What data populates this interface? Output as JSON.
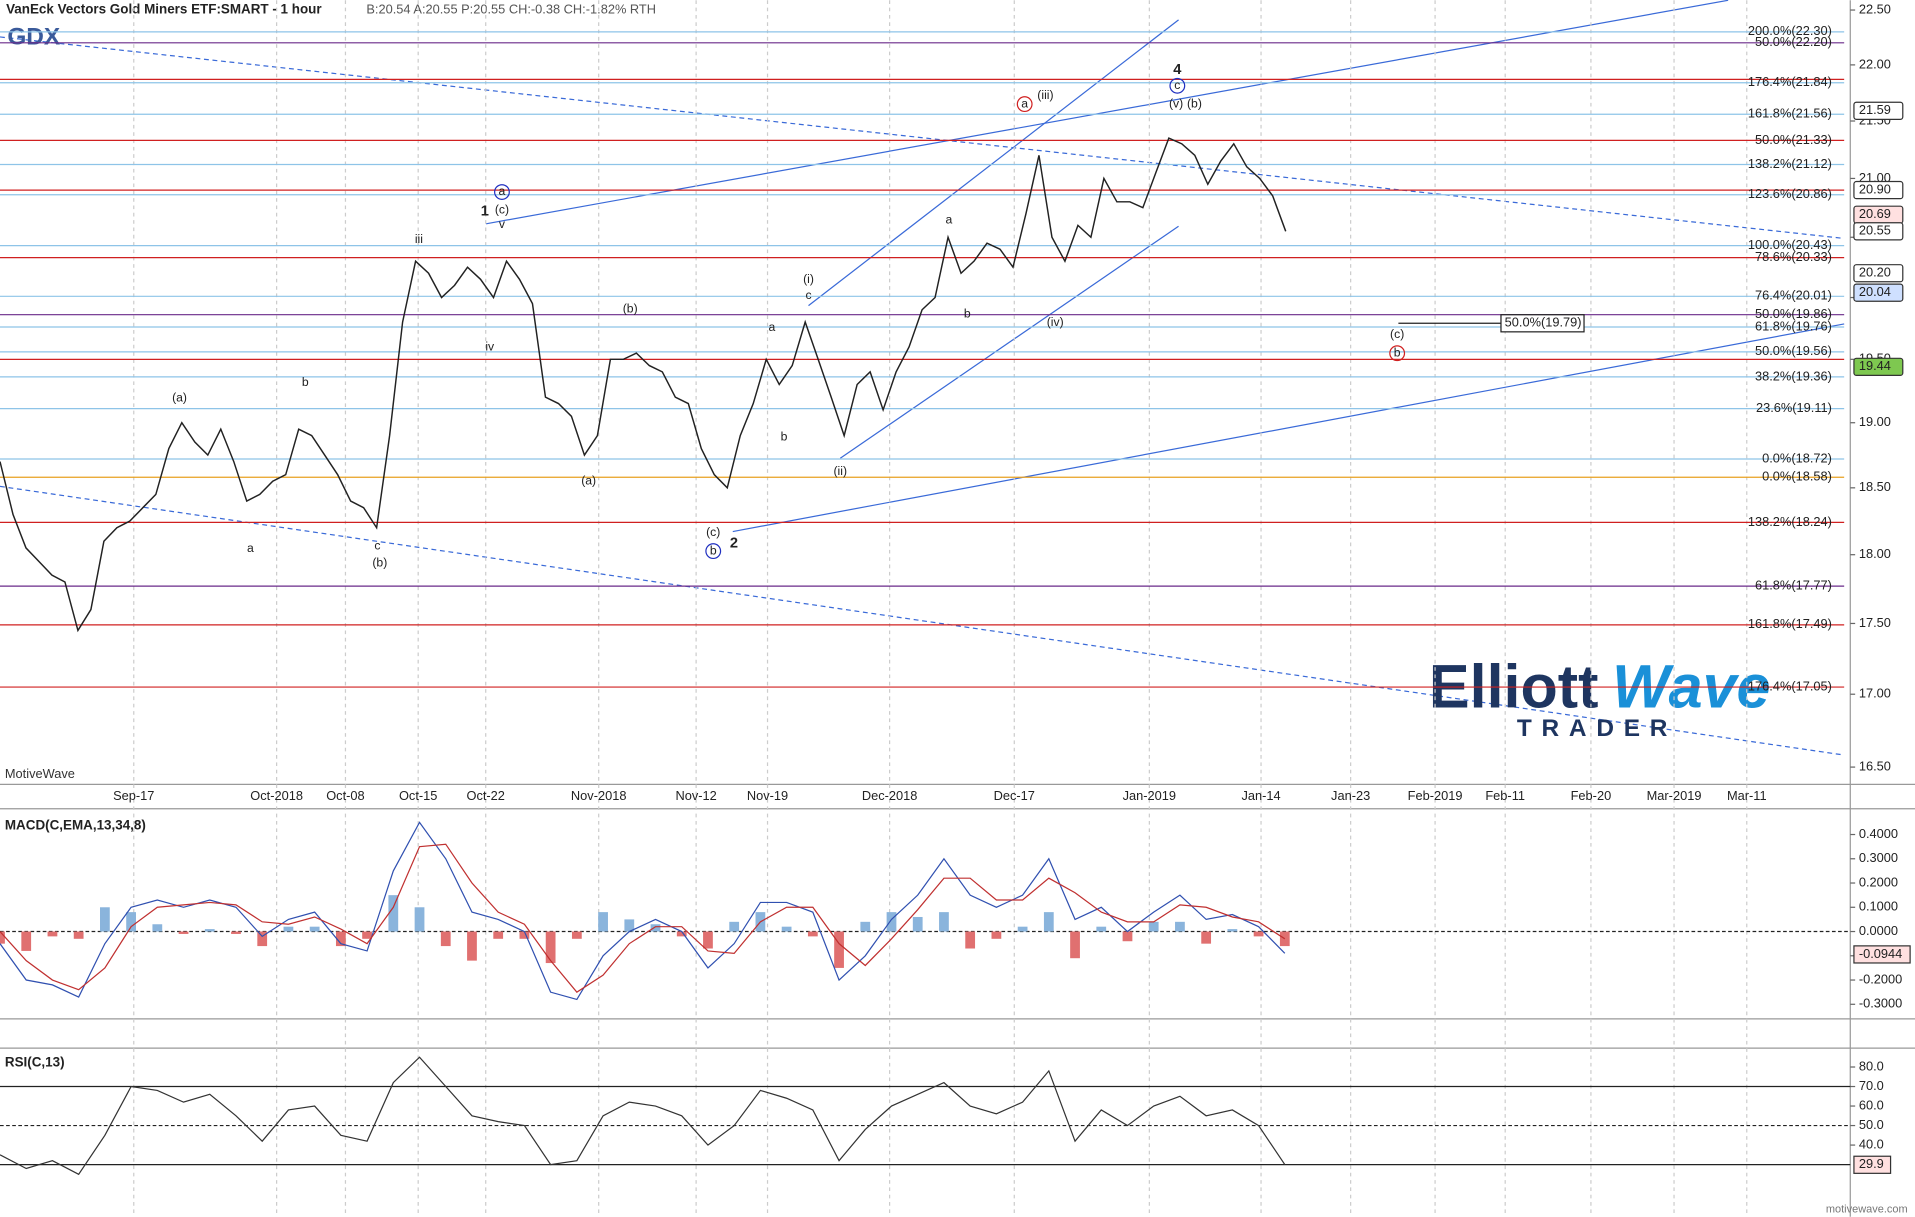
{
  "chart_data": [
    {
      "type": "line",
      "title": "VanEck Vectors Gold Miners ETF:SMART - 1 hour",
      "subtitle": "B:20.54 A:20.55 P:20.55 CH:-0.38 CH:-1.82% RTH",
      "symbol": "GDX",
      "watermark": "MotiveWave",
      "log": true,
      "xlim": [
        0,
        142
      ],
      "xticks": [
        {
          "value": 10.3,
          "label": "Sep-17"
        },
        {
          "value": 21.3,
          "label": "Oct-2018"
        },
        {
          "value": 26.6,
          "label": "Oct-08"
        },
        {
          "value": 32.2,
          "label": "Oct-15"
        },
        {
          "value": 37.4,
          "label": "Oct-22"
        },
        {
          "value": 46.1,
          "label": "Nov-2018"
        },
        {
          "value": 53.6,
          "label": "Nov-12"
        },
        {
          "value": 59.1,
          "label": "Nov-19"
        },
        {
          "value": 68.5,
          "label": "Dec-2018"
        },
        {
          "value": 78.1,
          "label": "Dec-17"
        },
        {
          "value": 88.5,
          "label": "Jan-2019"
        },
        {
          "value": 97.1,
          "label": "Jan-14"
        },
        {
          "value": 104,
          "label": "Jan-23"
        },
        {
          "value": 110.5,
          "label": "Feb-2019"
        },
        {
          "value": 115.9,
          "label": "Feb-11"
        },
        {
          "value": 122.5,
          "label": "Feb-20"
        },
        {
          "value": 128.9,
          "label": "Mar-2019"
        },
        {
          "value": 134.5,
          "label": "Mar-11"
        }
      ],
      "ylim": [
        16.4,
        22.59
      ],
      "yticks": [
        {
          "value": 16.5,
          "label": "16.50"
        },
        {
          "value": 17,
          "label": "17.00"
        },
        {
          "value": 17.5,
          "label": "17.50"
        },
        {
          "value": 18,
          "label": "18.00"
        },
        {
          "value": 18.5,
          "label": "18.50"
        },
        {
          "value": 19,
          "label": "19.00"
        },
        {
          "value": 19.5,
          "label": "19.50"
        },
        {
          "value": 20,
          "label": "20.00"
        },
        {
          "value": 20.5,
          "label": "20.50"
        },
        {
          "value": 21,
          "label": "21.00"
        },
        {
          "value": 21.5,
          "label": "21.50"
        },
        {
          "value": 22,
          "label": "22.00"
        },
        {
          "value": 22.5,
          "label": "22.50"
        }
      ],
      "series": [
        {
          "name": "GDX",
          "color": "#222222",
          "values": [
            18.7,
            18.3,
            18.05,
            17.95,
            17.85,
            17.8,
            17.45,
            17.6,
            18.1,
            18.2,
            18.25,
            18.35,
            18.45,
            18.8,
            19.0,
            18.85,
            18.75,
            18.95,
            18.7,
            18.4,
            18.45,
            18.55,
            18.6,
            18.95,
            18.9,
            18.75,
            18.6,
            18.4,
            18.35,
            18.2,
            18.9,
            19.8,
            20.3,
            20.2,
            20.0,
            20.1,
            20.25,
            20.15,
            20.0,
            20.3,
            20.15,
            19.95,
            19.2,
            19.15,
            19.05,
            18.75,
            18.9,
            19.5,
            19.5,
            19.55,
            19.45,
            19.4,
            19.2,
            19.15,
            18.8,
            18.6,
            18.5,
            18.9,
            19.15,
            19.5,
            19.3,
            19.45,
            19.8,
            19.5,
            19.2,
            18.9,
            19.3,
            19.4,
            19.1,
            19.4,
            19.6,
            19.9,
            20.0,
            20.5,
            20.2,
            20.3,
            20.45,
            20.4,
            20.25,
            20.7,
            21.2,
            20.5,
            20.3,
            20.6,
            20.5,
            21.0,
            20.8,
            20.8,
            20.75,
            21.05,
            21.35,
            21.3,
            21.2,
            20.95,
            21.15,
            21.3,
            21.1,
            21.0,
            20.85,
            20.55
          ]
        }
      ],
      "levels": [
        {
          "value": 22.3,
          "label": "200.0%(22.30)",
          "color": "#8ec4e8"
        },
        {
          "value": 22.2,
          "label": "50.0%(22.20)",
          "color": "#6a2a8a"
        },
        {
          "value": 21.87,
          "color": "#d02020"
        },
        {
          "value": 21.84,
          "label": "176.4%(21.84)",
          "color": "#8ec4e8"
        },
        {
          "value": 21.56,
          "label": "161.8%(21.56)",
          "color": "#8ec4e8"
        },
        {
          "value": 21.33,
          "label": "50.0%(21.33)",
          "color": "#d02020"
        },
        {
          "value": 21.12,
          "label": "138.2%(21.12)",
          "color": "#8ec4e8"
        },
        {
          "value": 20.9,
          "color": "#d02020"
        },
        {
          "value": 20.86,
          "label": "123.6%(20.86)",
          "color": "#8ec4e8"
        },
        {
          "value": 20.43,
          "label": "100.0%(20.43)",
          "color": "#8ec4e8"
        },
        {
          "value": 20.33,
          "label": "78.6%(20.33)",
          "color": "#d02020"
        },
        {
          "value": 20.01,
          "label": "76.4%(20.01)",
          "color": "#8ec4e8"
        },
        {
          "value": 19.86,
          "label": "50.0%(19.86)",
          "color": "#6a2a8a"
        },
        {
          "value": 19.76,
          "label": "61.8%(19.76)",
          "color": "#8ec4e8"
        },
        {
          "value": 19.56,
          "label": "50.0%(19.56)",
          "color": "#8ec4e8"
        },
        {
          "value": 19.5,
          "color": "#d02020"
        },
        {
          "value": 19.36,
          "label": "38.2%(19.36)",
          "color": "#8ec4e8"
        },
        {
          "value": 19.11,
          "label": "23.6%(19.11)",
          "color": "#8ec4e8"
        },
        {
          "value": 18.72,
          "label": "0.0%(18.72)",
          "color": "#8ec4e8"
        },
        {
          "value": 18.58,
          "label": "0.0%(18.58)",
          "color": "#e8a020"
        },
        {
          "value": 18.24,
          "label": "138.2%(18.24)",
          "color": "#d02020"
        },
        {
          "value": 17.77,
          "label": "61.8%(17.77)",
          "color": "#6a2a8a"
        },
        {
          "value": 17.49,
          "label": "161.8%(17.49)",
          "color": "#d02020"
        },
        {
          "value": 17.05,
          "label": "176.4%(17.05)",
          "color": "#d02020"
        }
      ],
      "target": {
        "value": 19.79,
        "label": "50.0%(19.79)"
      },
      "price_markers": [
        {
          "value": 21.59,
          "color": "#ffffff"
        },
        {
          "value": 20.9,
          "label": "20.90",
          "color": "#ffffff"
        },
        {
          "value": 20.69,
          "color": "#ffe0e0"
        },
        {
          "value": 20.55,
          "color": "#ffffff"
        },
        {
          "value": 20.2,
          "label": "20.20",
          "color": "#ffffff"
        },
        {
          "value": 20.04,
          "color": "#cfe0ff"
        },
        {
          "value": 19.44,
          "color": "#7ec850"
        }
      ],
      "annotations": [
        {
          "text": "1",
          "color": "#d02020"
        },
        {
          "text": "2",
          "color": "#d02020"
        },
        {
          "text": "4",
          "color": "#2030c0"
        },
        {
          "text": "(iii)",
          "color": "#2030c0"
        },
        {
          "text": "(v)",
          "color": "#2030c0"
        },
        {
          "text": "(b)",
          "color": "#d02020"
        },
        {
          "text": "a",
          "color": "#d02020",
          "circled": true
        },
        {
          "text": "c",
          "color": "#2030c0",
          "circled": true
        },
        {
          "text": "a",
          "color": "#2030c0",
          "circled": true
        },
        {
          "text": "(c)",
          "color": "#2030c0"
        },
        {
          "text": "iii",
          "color": "#2030c0"
        },
        {
          "text": "v",
          "color": "#2030c0"
        },
        {
          "text": "iv",
          "color": "#2030c0"
        },
        {
          "text": "(b)",
          "color": "#2030c0"
        },
        {
          "text": "(a)",
          "color": "#2030c0"
        },
        {
          "text": "(a)",
          "color": "#2030c0"
        },
        {
          "text": "b",
          "color": "#2030c0"
        },
        {
          "text": "a",
          "color": "#2030c0"
        },
        {
          "text": "c",
          "color": "#2030c0"
        },
        {
          "text": "(b)",
          "color": "#2030c0"
        },
        {
          "text": "(c)",
          "color": "#2030c0"
        },
        {
          "text": "b",
          "color": "#2030c0",
          "circled": true
        },
        {
          "text": "(i)",
          "color": "#2030c0"
        },
        {
          "text": "c",
          "color": "#2030c0"
        },
        {
          "text": "a",
          "color": "#2030c0"
        },
        {
          "text": "b",
          "color": "#2030c0"
        },
        {
          "text": "(ii)",
          "color": "#2030c0"
        },
        {
          "text": "a",
          "color": "#2030c0"
        },
        {
          "text": "b",
          "color": "#2030c0"
        },
        {
          "text": "(iv)",
          "color": "#2030c0"
        },
        {
          "text": "(c)",
          "color": "#d02020"
        },
        {
          "text": "b",
          "color": "#d02020",
          "circled": true
        }
      ]
    },
    {
      "type": "macd",
      "title": "MACD(C,EMA,13,34,8)",
      "ylim": [
        -0.35,
        0.496
      ],
      "yticks": [
        {
          "value": -0.3,
          "label": "-0.3000"
        },
        {
          "value": -0.2,
          "label": "-0.2000"
        },
        {
          "value": -0.1,
          "label": "-0.1000"
        },
        {
          "value": 0,
          "label": "0.0000"
        },
        {
          "value": 0.1,
          "label": "0.1000"
        },
        {
          "value": 0.2,
          "label": "0.2000"
        },
        {
          "value": 0.3,
          "label": "0.3000"
        },
        {
          "value": 0.4,
          "label": "0.4000"
        }
      ],
      "last": {
        "value": -0.0944,
        "color": "#ffe0e0"
      },
      "series": [
        {
          "name": "MACD",
          "color": "#3050b0",
          "values": [
            -0.05,
            -0.2,
            -0.22,
            -0.27,
            -0.05,
            0.1,
            0.13,
            0.1,
            0.13,
            0.1,
            -0.02,
            0.05,
            0.08,
            -0.05,
            -0.08,
            0.25,
            0.45,
            0.3,
            0.08,
            0.05,
            0.0,
            -0.25,
            -0.28,
            -0.1,
            0.0,
            0.05,
            0.0,
            -0.15,
            -0.05,
            0.12,
            0.12,
            0.08,
            -0.2,
            -0.1,
            0.05,
            0.15,
            0.3,
            0.15,
            0.1,
            0.15,
            0.3,
            0.05,
            0.1,
            0.0,
            0.08,
            0.15,
            0.05,
            0.07,
            0.02,
            -0.09
          ]
        },
        {
          "name": "Signal",
          "color": "#c03030",
          "values": [
            0.0,
            -0.12,
            -0.2,
            -0.24,
            -0.15,
            0.02,
            0.1,
            0.11,
            0.12,
            0.11,
            0.04,
            0.03,
            0.06,
            0.01,
            -0.05,
            0.1,
            0.35,
            0.36,
            0.2,
            0.08,
            0.03,
            -0.12,
            -0.25,
            -0.18,
            -0.05,
            0.02,
            0.02,
            -0.08,
            -0.09,
            0.04,
            0.1,
            0.1,
            -0.05,
            -0.14,
            -0.03,
            0.09,
            0.22,
            0.22,
            0.13,
            0.13,
            0.22,
            0.16,
            0.08,
            0.04,
            0.04,
            0.11,
            0.1,
            0.06,
            0.04,
            -0.03
          ]
        },
        {
          "name": "Histogram",
          "values": [
            -0.05,
            -0.08,
            -0.02,
            -0.03,
            0.1,
            0.08,
            0.03,
            -0.01,
            0.01,
            -0.01,
            -0.06,
            0.02,
            0.02,
            -0.06,
            -0.03,
            0.15,
            0.1,
            -0.06,
            -0.12,
            -0.03,
            -0.03,
            -0.13,
            -0.03,
            0.08,
            0.05,
            0.03,
            -0.02,
            -0.07,
            0.04,
            0.08,
            0.02,
            -0.02,
            -0.15,
            0.04,
            0.08,
            0.06,
            0.08,
            -0.07,
            -0.03,
            0.02,
            0.08,
            -0.11,
            0.02,
            -0.04,
            0.04,
            0.04,
            -0.05,
            0.01,
            -0.02,
            -0.06
          ]
        }
      ]
    },
    {
      "type": "rsi",
      "title": "RSI(C,13)",
      "ylim": [
        5.8,
        88.4
      ],
      "yticks": [
        {
          "value": 40,
          "label": "40.0"
        },
        {
          "value": 50,
          "label": "50.0"
        },
        {
          "value": 60,
          "label": "60.0"
        },
        {
          "value": 70,
          "label": "70.0"
        },
        {
          "value": 80,
          "label": "80.0"
        }
      ],
      "bands": [
        30,
        50,
        70
      ],
      "last": {
        "value": 29.9,
        "color": "#ffe0e0"
      },
      "series": [
        {
          "name": "RSI",
          "color": "#333333",
          "values": [
            35,
            28,
            32,
            25,
            45,
            70,
            68,
            62,
            66,
            55,
            42,
            58,
            60,
            45,
            42,
            72,
            85,
            70,
            55,
            52,
            50,
            30,
            32,
            55,
            62,
            60,
            55,
            40,
            50,
            68,
            64,
            58,
            32,
            48,
            60,
            66,
            72,
            60,
            56,
            62,
            78,
            42,
            58,
            50,
            60,
            65,
            55,
            58,
            50,
            30
          ]
        }
      ]
    }
  ],
  "logo": {
    "elliott": "Elliott",
    "wave": "Wave",
    "trader": "TRADER"
  },
  "footer": "motivewave.com"
}
